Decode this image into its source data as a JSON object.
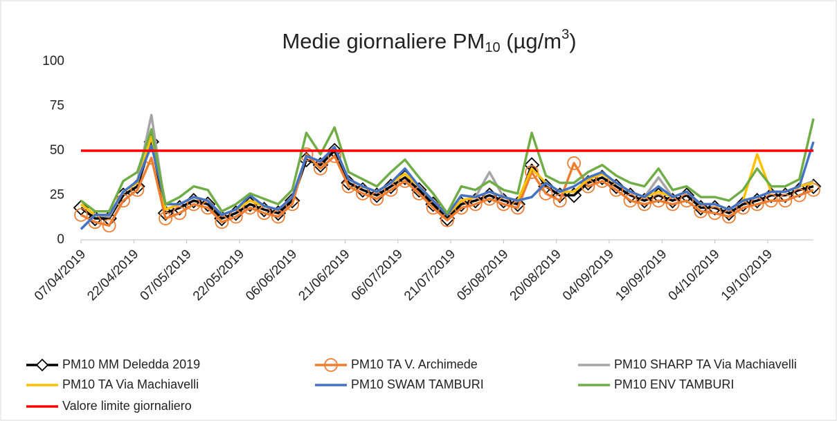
{
  "chart_data": {
    "type": "line",
    "title": [
      "Medie giornaliere PM",
      "10",
      " (µg/m",
      "3",
      ")"
    ],
    "x": [
      "07/04/2019",
      "11/04/2019",
      "15/04/2019",
      "19/04/2019",
      "23/04/2019",
      "27/04/2019",
      "01/05/2019",
      "05/05/2019",
      "09/05/2019",
      "13/05/2019",
      "17/05/2019",
      "21/05/2019",
      "25/05/2019",
      "29/05/2019",
      "02/06/2019",
      "06/06/2019",
      "10/06/2019",
      "14/06/2019",
      "18/06/2019",
      "22/06/2019",
      "26/06/2019",
      "30/06/2019",
      "04/07/2019",
      "08/07/2019",
      "12/07/2019",
      "16/07/2019",
      "20/07/2019",
      "24/07/2019",
      "28/07/2019",
      "01/08/2019",
      "05/08/2019",
      "09/08/2019",
      "13/08/2019",
      "17/08/2019",
      "21/08/2019",
      "25/08/2019",
      "29/08/2019",
      "02/09/2019",
      "06/09/2019",
      "10/09/2019",
      "14/09/2019",
      "18/09/2019",
      "22/09/2019",
      "26/09/2019",
      "30/09/2019",
      "04/10/2019",
      "08/10/2019",
      "12/10/2019",
      "16/10/2019",
      "20/10/2019",
      "24/10/2019",
      "28/10/2019",
      "01/11/2019"
    ],
    "xlim": [
      "07/04/2019",
      "01/11/2019"
    ],
    "xticks": [
      "07/04/2019",
      "22/04/2019",
      "07/05/2019",
      "22/05/2019",
      "06/06/2019",
      "21/06/2019",
      "06/07/2019",
      "21/07/2019",
      "05/08/2019",
      "20/08/2019",
      "04/09/2019",
      "19/09/2019",
      "04/10/2019",
      "19/10/2019"
    ],
    "ylim": [
      0,
      100
    ],
    "yticks": [
      0,
      25,
      50,
      75,
      100
    ],
    "grid": false,
    "legend": "bottom",
    "series": [
      {
        "name": "PM10 MM Deledda 2019",
        "color": "#000000",
        "marker": "diamond",
        "values": [
          18,
          12,
          12,
          25,
          30,
          55,
          15,
          18,
          22,
          20,
          12,
          15,
          20,
          17,
          15,
          22,
          45,
          42,
          50,
          32,
          28,
          25,
          30,
          35,
          28,
          20,
          12,
          20,
          22,
          25,
          22,
          20,
          42,
          30,
          25,
          25,
          32,
          35,
          30,
          25,
          22,
          25,
          22,
          25,
          18,
          18,
          15,
          20,
          22,
          25,
          25,
          28,
          30
        ]
      },
      {
        "name": "PM10 TA V. Archimede",
        "color": "#ed7d31",
        "marker": "circle",
        "values": [
          14,
          10,
          8,
          22,
          28,
          46,
          12,
          15,
          20,
          18,
          10,
          13,
          18,
          15,
          13,
          20,
          48,
          40,
          47,
          30,
          26,
          23,
          28,
          33,
          26,
          18,
          11,
          18,
          20,
          23,
          20,
          18,
          38,
          26,
          22,
          43,
          30,
          33,
          28,
          22,
          20,
          22,
          20,
          22,
          16,
          15,
          13,
          18,
          20,
          22,
          22,
          25,
          28
        ]
      },
      {
        "name": "PM10 SHARP TA Via Machiavelli",
        "color": "#a5a5a5",
        "values": [
          20,
          14,
          13,
          27,
          33,
          70,
          17,
          20,
          24,
          22,
          14,
          17,
          22,
          19,
          17,
          24,
          47,
          44,
          52,
          34,
          30,
          27,
          32,
          37,
          30,
          22,
          14,
          22,
          24,
          38,
          24,
          22,
          24,
          32,
          27,
          27,
          34,
          37,
          32,
          27,
          24,
          35,
          24,
          27,
          20,
          20,
          17,
          22,
          24,
          27,
          27,
          30,
          33
        ]
      },
      {
        "name": "PM10 TA Via Machiavelli",
        "color": "#ffc000",
        "values": [
          20,
          14,
          14,
          27,
          32,
          58,
          17,
          20,
          24,
          22,
          14,
          17,
          22,
          19,
          17,
          24,
          47,
          44,
          52,
          34,
          30,
          27,
          32,
          37,
          30,
          22,
          14,
          22,
          24,
          27,
          24,
          22,
          40,
          32,
          27,
          27,
          34,
          37,
          32,
          27,
          24,
          27,
          24,
          27,
          20,
          20,
          17,
          22,
          48,
          27,
          27,
          30,
          32
        ]
      },
      {
        "name": "PM10 SWAM TAMBURI",
        "color": "#4472c4",
        "values": [
          6,
          14,
          14,
          27,
          33,
          53,
          20,
          20,
          24,
          22,
          14,
          17,
          25,
          19,
          17,
          24,
          47,
          44,
          52,
          34,
          30,
          27,
          32,
          40,
          30,
          22,
          14,
          25,
          24,
          27,
          24,
          22,
          24,
          32,
          27,
          30,
          35,
          38,
          32,
          27,
          24,
          30,
          24,
          27,
          20,
          20,
          17,
          22,
          24,
          27,
          27,
          30,
          55
        ]
      },
      {
        "name": "PM10 ENV TAMBURI",
        "color": "#70ad47",
        "values": [
          22,
          16,
          16,
          33,
          38,
          62,
          20,
          24,
          30,
          28,
          16,
          20,
          26,
          23,
          20,
          28,
          60,
          48,
          63,
          38,
          34,
          30,
          38,
          45,
          35,
          26,
          15,
          30,
          28,
          33,
          28,
          26,
          60,
          36,
          32,
          32,
          38,
          42,
          36,
          32,
          30,
          40,
          28,
          30,
          24,
          24,
          22,
          28,
          40,
          30,
          30,
          34,
          68
        ]
      },
      {
        "name": "Valore limite giornaliero",
        "color": "#ff0000",
        "values": [
          50,
          50,
          50,
          50,
          50,
          50,
          50,
          50,
          50,
          50,
          50,
          50,
          50,
          50,
          50,
          50,
          50,
          50,
          50,
          50,
          50,
          50,
          50,
          50,
          50,
          50,
          50,
          50,
          50,
          50,
          50,
          50,
          50,
          50,
          50,
          50,
          50,
          50,
          50,
          50,
          50,
          50,
          50,
          50,
          50,
          50,
          50,
          50,
          50,
          50,
          50,
          50,
          50
        ]
      }
    ]
  }
}
